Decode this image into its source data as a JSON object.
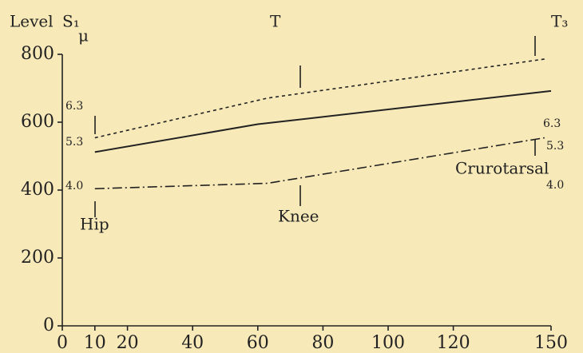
{
  "chart_data": {
    "type": "line",
    "annotations": [
      "Level",
      "S₁",
      "T",
      "T₃",
      "μ",
      "6.3",
      "5.3",
      "4.0",
      "6.3",
      "5.3",
      "4.0",
      "Hip",
      "Knee",
      "Crurotarsal"
    ],
    "series": [
      {
        "color": "#222222",
        "style": "dashed",
        "x": [
          10,
          63,
          148
        ],
        "values": [
          554,
          671,
          786
        ]
      },
      {
        "color": "#222222",
        "style": "solid",
        "x": [
          10,
          60,
          150
        ],
        "values": [
          512,
          594,
          692
        ]
      },
      {
        "color": "#222222",
        "style": "dashdot",
        "x": [
          10,
          63,
          148
        ],
        "values": [
          404,
          420,
          554
        ]
      }
    ],
    "xlim": [
      0,
      150
    ],
    "xticks": [
      0,
      10,
      20,
      40,
      60,
      80,
      100,
      120,
      150
    ],
    "ylim": [
      0,
      800
    ],
    "yticks": [
      0,
      200,
      400,
      600,
      800
    ]
  }
}
